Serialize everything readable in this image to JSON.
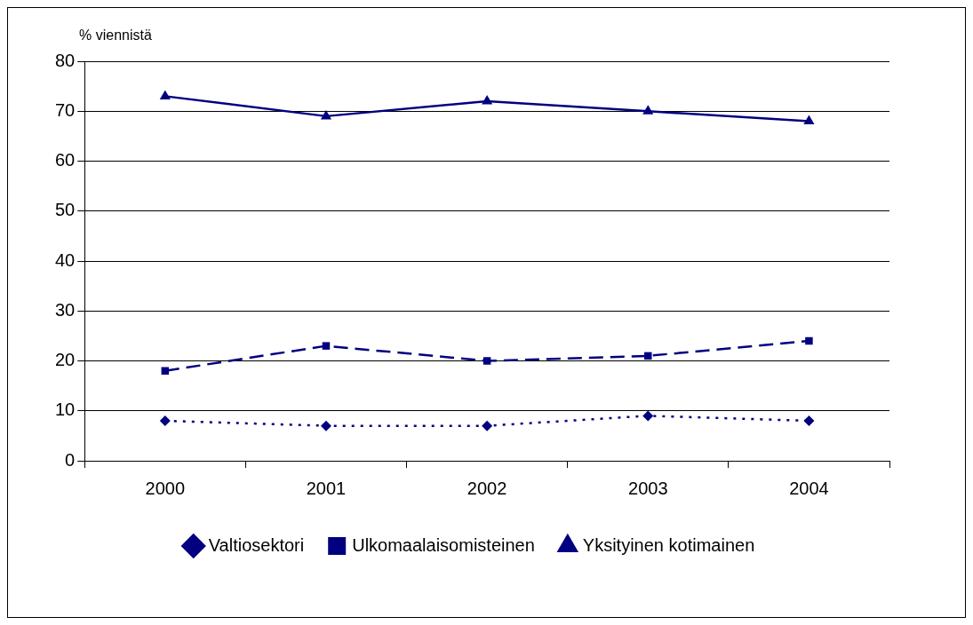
{
  "chart_data": {
    "type": "line",
    "ylabel": "% viennistä",
    "categories": [
      "2000",
      "2001",
      "2002",
      "2003",
      "2004"
    ],
    "series": [
      {
        "name": "Valtiosektori",
        "color": "#000080",
        "values": [
          8,
          7,
          7,
          9,
          8
        ],
        "marker": "diamond",
        "line_style": "dotted"
      },
      {
        "name": "Ulkomaalaisomisteinen",
        "color": "#000080",
        "values": [
          18,
          23,
          20,
          21,
          24
        ],
        "marker": "square",
        "line_style": "dashed"
      },
      {
        "name": "Yksityinen kotimainen",
        "color": "#000080",
        "values": [
          73,
          69,
          72,
          70,
          68
        ],
        "marker": "triangle",
        "line_style": "solid"
      }
    ],
    "ylim": [
      0,
      80
    ],
    "yticks": [
      0,
      10,
      20,
      30,
      40,
      50,
      60,
      70,
      80
    ],
    "grid": "y",
    "legend": "bottom"
  }
}
